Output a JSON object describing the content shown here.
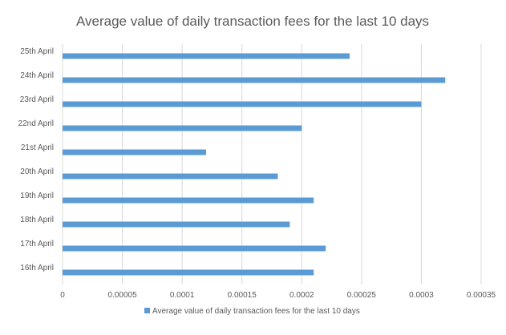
{
  "chart_data": {
    "type": "bar",
    "orientation": "horizontal",
    "title": "Average value of daily transaction fees for the last 10 days",
    "categories": [
      "25th April",
      "24th April",
      "23rd April",
      "22nd April",
      "21st April",
      "20th April",
      "19th April",
      "18th April",
      "17th April",
      "16th April"
    ],
    "series": [
      {
        "name": "Average value of daily transaction fees for the last 10 days",
        "values": [
          0.00024,
          0.00032,
          0.0003,
          0.0002,
          0.00012,
          0.00018,
          0.00021,
          0.00019,
          0.00022,
          0.00021
        ],
        "color": "#5B9BD5"
      }
    ],
    "xlim": [
      0,
      0.00035
    ],
    "xticks": [
      "0",
      "0.00005",
      "0.0001",
      "0.00015",
      "0.0002",
      "0.00025",
      "0.0003",
      "0.00035"
    ],
    "grid": "vertical",
    "gridColor": "#D9D9D9",
    "legend": "bottom"
  }
}
